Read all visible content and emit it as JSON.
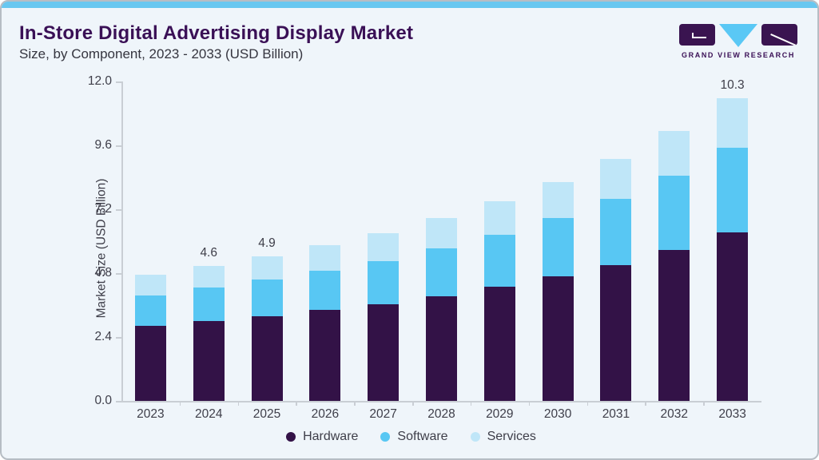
{
  "header": {
    "title": "In-Store Digital Advertising Display Market",
    "subtitle": "Size, by Component, 2023 - 2033 (USD Billion)"
  },
  "logo": {
    "name": "grand-view-research-logo",
    "text": "GRAND VIEW RESEARCH"
  },
  "chart_data": {
    "type": "bar",
    "stacked": true,
    "title": "In-Store Digital Advertising Display Market Size, by Component, 2023 - 2033 (USD Billion)",
    "categories": [
      "2023",
      "2024",
      "2025",
      "2026",
      "2027",
      "2028",
      "2029",
      "2030",
      "2031",
      "2032",
      "2033"
    ],
    "series": [
      {
        "name": "Hardware",
        "color": "#331247",
        "values": [
          2.55,
          2.72,
          2.88,
          3.1,
          3.29,
          3.56,
          3.89,
          4.24,
          4.62,
          5.14,
          5.73
        ]
      },
      {
        "name": "Software",
        "color": "#58c7f3",
        "values": [
          1.04,
          1.14,
          1.25,
          1.33,
          1.47,
          1.63,
          1.77,
          1.98,
          2.26,
          2.52,
          2.88
        ]
      },
      {
        "name": "Services",
        "color": "#bfe6f8",
        "values": [
          0.7,
          0.74,
          0.79,
          0.87,
          0.95,
          1.03,
          1.14,
          1.23,
          1.36,
          1.52,
          1.69
        ]
      }
    ],
    "totals": [
      4.3,
      4.6,
      4.9,
      5.3,
      5.7,
      6.2,
      6.8,
      7.5,
      8.2,
      9.2,
      10.3
    ],
    "total_labels": [
      "",
      "4.6",
      "4.9",
      "",
      "",
      "",
      "",
      "",
      "",
      "",
      "10.3"
    ],
    "ylabel": "Market Size (USD Billion)",
    "xlabel": "",
    "ylim": [
      0,
      12
    ],
    "yticks": [
      "12.0",
      "9.6",
      "7.2",
      "4.8",
      "2.4",
      "0.0"
    ],
    "grid": false,
    "legend": {
      "position": "bottom",
      "entries": [
        "Hardware",
        "Software",
        "Services"
      ]
    }
  },
  "colors": {
    "background": "#eff5fa",
    "top_strip": "#68c7f0",
    "card_border": "#b6bdc4",
    "title_text": "#3a1056",
    "subtitle_text": "#35353f",
    "axis_text": "#3e3e49",
    "axis_line": "#c9ced4",
    "hardware": "#331247",
    "software": "#58c7f3",
    "services": "#bfe6f8",
    "logo_purple": "#3a1450",
    "logo_blue": "#5ac8f5"
  }
}
